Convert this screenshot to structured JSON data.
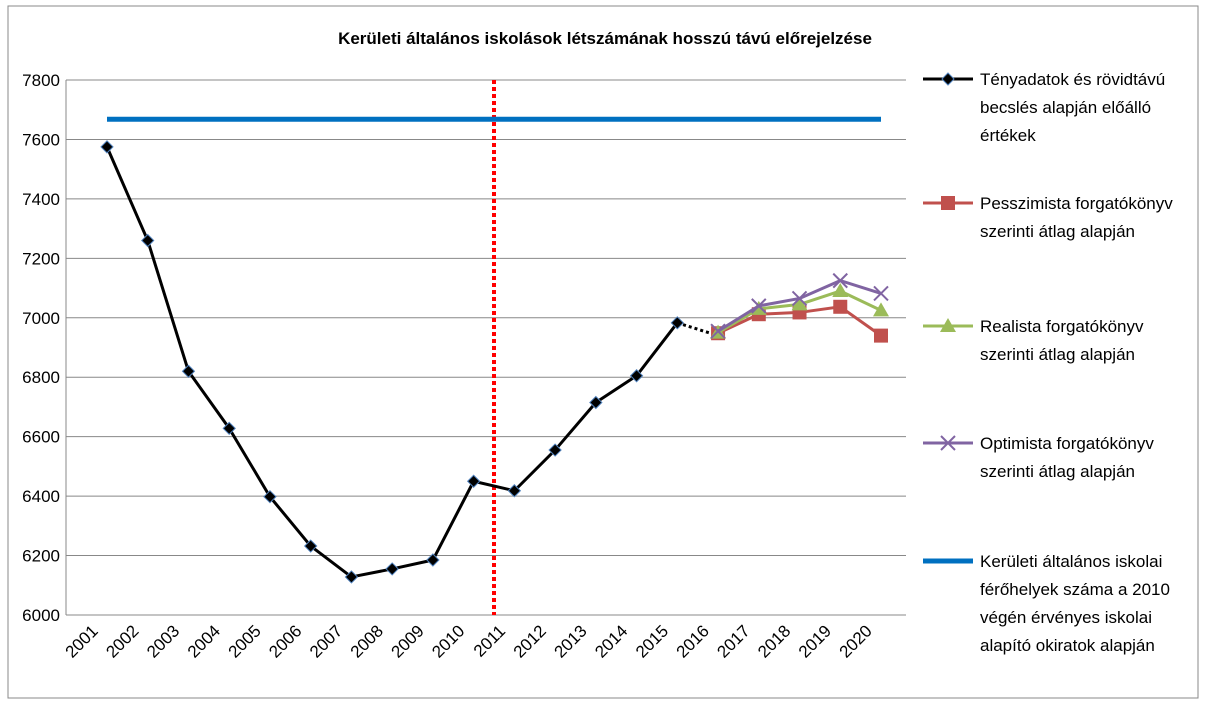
{
  "chart_data": {
    "type": "line",
    "title": "Kerületi általános iskolások létszámának hosszú távú előrejelzése",
    "categories": [
      "2001",
      "2002",
      "2003",
      "2004",
      "2005",
      "2006",
      "2007",
      "2008",
      "2009",
      "2010",
      "2011",
      "2012",
      "2013",
      "2014",
      "2015",
      "2016",
      "2017",
      "2018",
      "2019",
      "2020"
    ],
    "series": [
      {
        "name": "Tényadatok és rövidtávú becslés alapján előálló értékek",
        "color": "#000000",
        "marker": "diamond",
        "dashed_last_segment": true,
        "values": [
          7575,
          7260,
          6820,
          6628,
          6398,
          6232,
          6128,
          6155,
          6185,
          6450,
          6418,
          6555,
          6715,
          6805,
          6983,
          6940,
          null,
          null,
          null,
          null
        ]
      },
      {
        "name": "Pesszimista forgatókönyv szerinti átlag alapján",
        "color": "#c0504d",
        "marker": "square",
        "values": [
          null,
          null,
          null,
          null,
          null,
          null,
          null,
          null,
          null,
          null,
          null,
          null,
          null,
          null,
          null,
          6948,
          7012,
          7018,
          7037,
          6940
        ]
      },
      {
        "name": "Realista forgatókönyv szerinti átlag alapján",
        "color": "#9bbb59",
        "marker": "triangle",
        "values": [
          null,
          null,
          null,
          null,
          null,
          null,
          null,
          null,
          null,
          null,
          null,
          null,
          null,
          null,
          null,
          6950,
          7030,
          7045,
          7090,
          7025
        ]
      },
      {
        "name": "Optimista forgatókönyv szerinti átlag alapján",
        "color": "#8064a2",
        "marker": "x",
        "values": [
          null,
          null,
          null,
          null,
          null,
          null,
          null,
          null,
          null,
          null,
          null,
          null,
          null,
          null,
          null,
          6955,
          7040,
          7065,
          7125,
          7082
        ]
      },
      {
        "name": "Kerületi általános iskolai férőhelyek száma a 2010 végén érvényes iskolai alapító okiratok alapján",
        "color": "#0070c0",
        "marker": "none",
        "values": [
          7668,
          7668,
          7668,
          7668,
          7668,
          7668,
          7668,
          7668,
          7668,
          7668,
          7668,
          7668,
          7668,
          7668,
          7668,
          7668,
          7668,
          7668,
          7668,
          7668
        ]
      }
    ],
    "ylim": [
      6000,
      7800
    ],
    "yticks": [
      6000,
      6200,
      6400,
      6600,
      6800,
      7000,
      7200,
      7400,
      7600,
      7800
    ],
    "grid": true,
    "legend": "right"
  }
}
